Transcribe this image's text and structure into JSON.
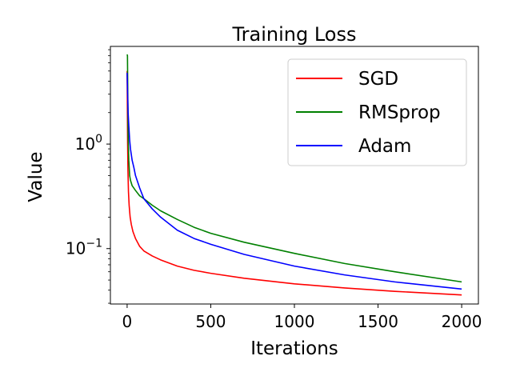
{
  "chart_data": {
    "type": "line",
    "title": "Training Loss",
    "xlabel": "Iterations",
    "ylabel": "Value",
    "xlim": [
      -100,
      2100
    ],
    "ylim": [
      0.0295,
      8.6
    ],
    "yscale": "log",
    "xticks": [
      0,
      500,
      1000,
      1500,
      2000
    ],
    "xtick_labels": [
      "0",
      "500",
      "1000",
      "1500",
      "2000"
    ],
    "yticks_major": [
      {
        "value": 1,
        "base": "10",
        "exp": "0"
      },
      {
        "value": 0.1,
        "base": "10",
        "exp": "−1"
      }
    ],
    "grid": false,
    "legend_position": "top-right",
    "series": [
      {
        "name": "SGD",
        "color": "#ff0000",
        "x": [
          0,
          3,
          5,
          8,
          12,
          18,
          25,
          35,
          50,
          75,
          100,
          150,
          200,
          300,
          400,
          500,
          700,
          1000,
          1300,
          1600,
          2000
        ],
        "y": [
          5.0,
          1.0,
          0.55,
          0.35,
          0.26,
          0.2,
          0.17,
          0.145,
          0.125,
          0.105,
          0.095,
          0.085,
          0.078,
          0.068,
          0.062,
          0.058,
          0.052,
          0.046,
          0.042,
          0.039,
          0.036
        ]
      },
      {
        "name": "RMSprop",
        "color": "#008000",
        "x": [
          0,
          2,
          4,
          6,
          10,
          15,
          20,
          30,
          50,
          75,
          100,
          150,
          200,
          300,
          400,
          500,
          700,
          1000,
          1300,
          1600,
          2000
        ],
        "y": [
          7.2,
          7.0,
          3.0,
          1.2,
          0.7,
          0.5,
          0.45,
          0.4,
          0.36,
          0.32,
          0.3,
          0.26,
          0.23,
          0.19,
          0.16,
          0.14,
          0.115,
          0.09,
          0.072,
          0.06,
          0.048
        ]
      },
      {
        "name": "Adam",
        "color": "#0000ff",
        "x": [
          0,
          3,
          6,
          10,
          15,
          20,
          30,
          40,
          50,
          75,
          100,
          150,
          200,
          300,
          400,
          500,
          700,
          1000,
          1300,
          1600,
          2000
        ],
        "y": [
          4.8,
          3.0,
          2.0,
          1.5,
          1.1,
          0.9,
          0.7,
          0.6,
          0.5,
          0.38,
          0.3,
          0.24,
          0.2,
          0.15,
          0.125,
          0.11,
          0.088,
          0.068,
          0.056,
          0.048,
          0.041
        ]
      }
    ]
  }
}
